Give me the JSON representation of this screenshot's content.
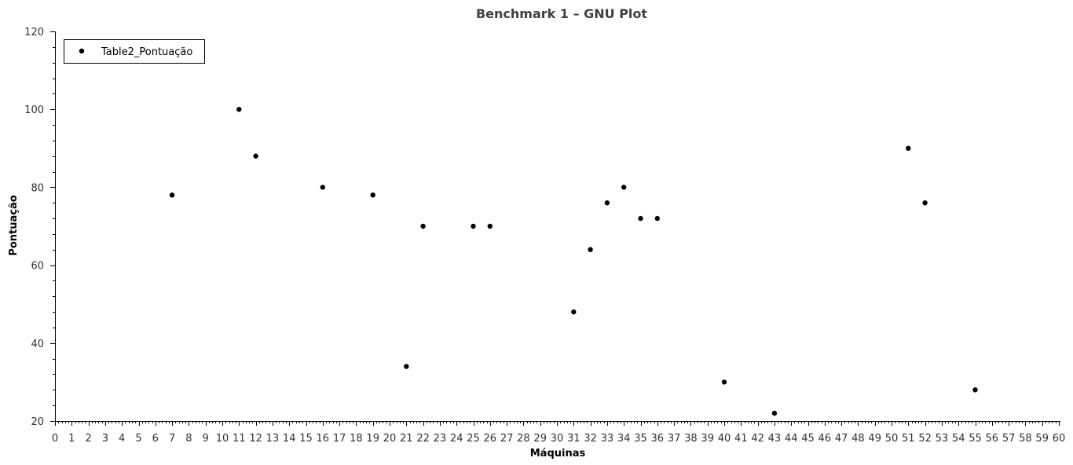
{
  "chart_data": {
    "type": "scatter",
    "title": "Benchmark 1 – GNU Plot",
    "xlabel": "Máquinas",
    "ylabel": "Pontuação",
    "xlim": [
      0,
      60
    ],
    "ylim": [
      20,
      120
    ],
    "x_ticks": [
      0,
      1,
      2,
      3,
      4,
      5,
      6,
      7,
      8,
      9,
      10,
      11,
      12,
      13,
      14,
      15,
      16,
      17,
      18,
      19,
      20,
      21,
      22,
      23,
      24,
      25,
      26,
      27,
      28,
      29,
      30,
      31,
      32,
      33,
      34,
      35,
      36,
      37,
      38,
      39,
      40,
      41,
      42,
      43,
      44,
      45,
      46,
      47,
      48,
      49,
      50,
      51,
      52,
      53,
      54,
      55,
      56,
      57,
      58,
      59,
      60
    ],
    "y_ticks": [
      20,
      40,
      60,
      80,
      100,
      120
    ],
    "grid": false,
    "legend_position": "top-left",
    "series": [
      {
        "name": "Table2_Pontuação",
        "color": "#000000",
        "points": [
          {
            "x": 7,
            "y": 78
          },
          {
            "x": 11,
            "y": 100
          },
          {
            "x": 12,
            "y": 88
          },
          {
            "x": 16,
            "y": 80
          },
          {
            "x": 19,
            "y": 78
          },
          {
            "x": 21,
            "y": 34
          },
          {
            "x": 22,
            "y": 70
          },
          {
            "x": 25,
            "y": 70
          },
          {
            "x": 26,
            "y": 70
          },
          {
            "x": 31,
            "y": 48
          },
          {
            "x": 32,
            "y": 64
          },
          {
            "x": 33,
            "y": 76
          },
          {
            "x": 34,
            "y": 80
          },
          {
            "x": 35,
            "y": 72
          },
          {
            "x": 36,
            "y": 72
          },
          {
            "x": 40,
            "y": 30
          },
          {
            "x": 43,
            "y": 22
          },
          {
            "x": 51,
            "y": 90
          },
          {
            "x": 52,
            "y": 76
          },
          {
            "x": 55,
            "y": 28
          }
        ]
      }
    ]
  }
}
